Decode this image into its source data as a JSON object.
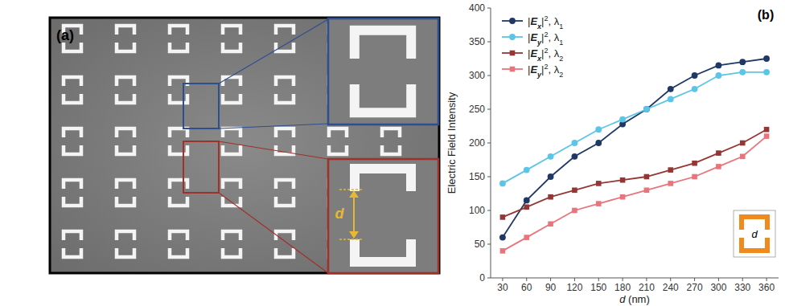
{
  "panel_a": {
    "label": "(a)",
    "dimension_label": "d"
  },
  "chart_data": {
    "type": "line",
    "title": "(b)",
    "x_label": "d (nm)",
    "y_label": "Electric Field Intensity",
    "x": [
      30,
      60,
      90,
      120,
      150,
      180,
      210,
      240,
      270,
      300,
      330,
      360
    ],
    "xlim": [
      15,
      375
    ],
    "xticks": [
      30,
      60,
      90,
      120,
      150,
      180,
      210,
      240,
      270,
      300,
      330,
      360
    ],
    "ylim": [
      0,
      400
    ],
    "yticks": [
      0,
      50,
      100,
      150,
      200,
      250,
      300,
      350,
      400
    ],
    "grid": false,
    "legend": "upper left",
    "annotations": [
      "d"
    ],
    "series": [
      {
        "name": "|Ex|2, λ1",
        "color": "#1f3864",
        "marker": "circle",
        "values": [
          60,
          115,
          150,
          180,
          200,
          228,
          250,
          280,
          300,
          315,
          320,
          325
        ]
      },
      {
        "name": "|Ey|2, λ1",
        "color": "#5bc5e8",
        "marker": "circle",
        "values": [
          140,
          160,
          180,
          200,
          220,
          235,
          250,
          265,
          280,
          300,
          305,
          305
        ]
      },
      {
        "name": "|Ex|2, λ2",
        "color": "#943634",
        "marker": "square",
        "values": [
          90,
          105,
          120,
          130,
          140,
          145,
          150,
          160,
          170,
          185,
          200,
          220
        ]
      },
      {
        "name": "|Ey|2, λ2",
        "color": "#e8747c",
        "marker": "square",
        "values": [
          40,
          60,
          80,
          100,
          110,
          120,
          130,
          140,
          150,
          165,
          180,
          210
        ]
      }
    ]
  }
}
